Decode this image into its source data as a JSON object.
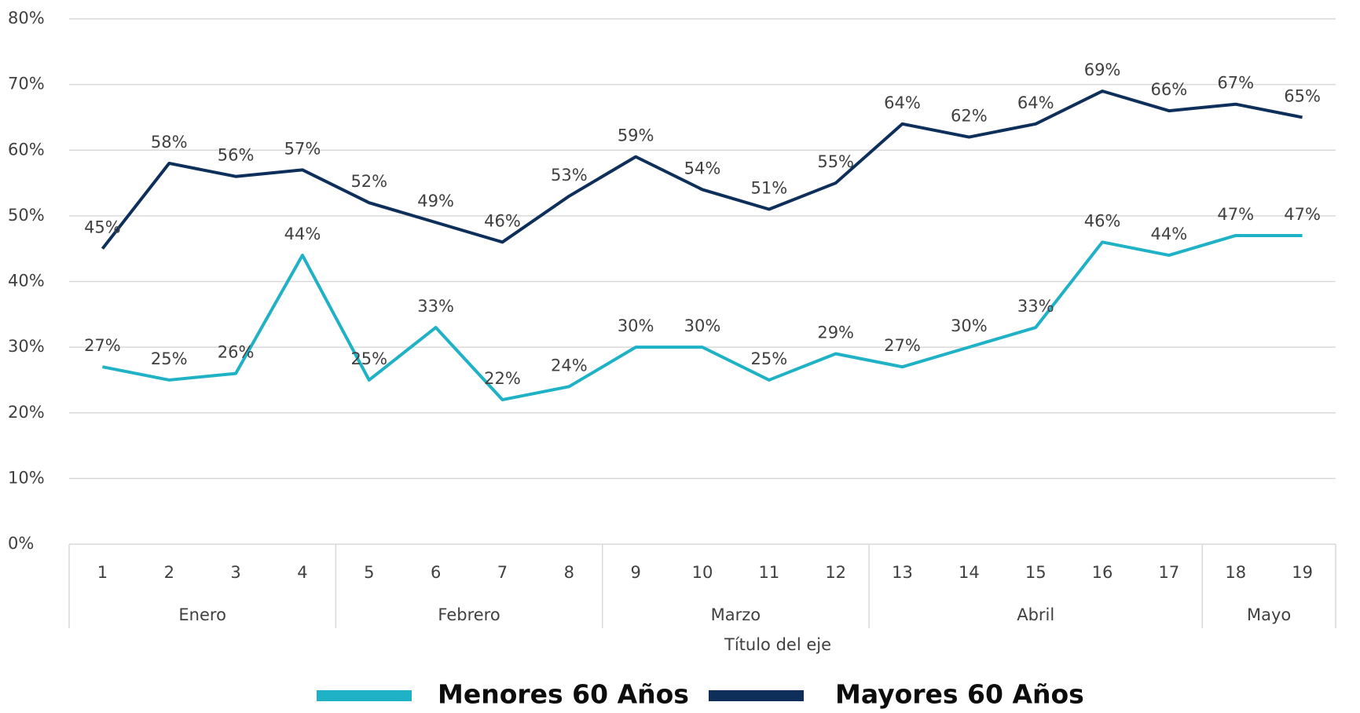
{
  "chart_data": {
    "type": "line",
    "x_axis_title": "Título del eje",
    "groups": [
      {
        "label": "Enero",
        "categories": [
          "1",
          "2",
          "3",
          "4"
        ]
      },
      {
        "label": "Febrero",
        "categories": [
          "5",
          "6",
          "7",
          "8"
        ]
      },
      {
        "label": "Marzo",
        "categories": [
          "9",
          "10",
          "11",
          "12"
        ]
      },
      {
        "label": "Abril",
        "categories": [
          "13",
          "14",
          "15",
          "16",
          "17"
        ]
      },
      {
        "label": "Mayo",
        "categories": [
          "18",
          "19"
        ]
      }
    ],
    "series": [
      {
        "name": "Menores 60 Años",
        "color": "#1fb1c5",
        "values": [
          27,
          25,
          26,
          44,
          25,
          33,
          22,
          24,
          30,
          30,
          25,
          29,
          27,
          30,
          33,
          46,
          44,
          47,
          47
        ],
        "value_labels": [
          "27%",
          "25%",
          "26%",
          "44%",
          "25%",
          "33%",
          "22%",
          "24%",
          "30%",
          "30%",
          "25%",
          "29%",
          "27%",
          "30%",
          "33%",
          "46%",
          "44%",
          "47%",
          "47%"
        ]
      },
      {
        "name": "Mayores 60 Años",
        "color": "#0d2f5a",
        "values": [
          45,
          58,
          56,
          57,
          52,
          49,
          46,
          53,
          59,
          54,
          51,
          55,
          64,
          62,
          64,
          69,
          66,
          67,
          65
        ],
        "value_labels": [
          "45%",
          "58%",
          "56%",
          "57%",
          "52%",
          "49%",
          "46%",
          "53%",
          "59%",
          "54%",
          "51%",
          "55%",
          "64%",
          "62%",
          "64%",
          "69%",
          "66%",
          "67%",
          "65%"
        ]
      }
    ],
    "ylim": [
      0,
      80
    ],
    "yticks": [
      {
        "value": 0,
        "label": "0%"
      },
      {
        "value": 10,
        "label": "10%"
      },
      {
        "value": 20,
        "label": "20%"
      },
      {
        "value": 30,
        "label": "30%"
      },
      {
        "value": 40,
        "label": "40%"
      },
      {
        "value": 50,
        "label": "50%"
      },
      {
        "value": 60,
        "label": "60%"
      },
      {
        "value": 70,
        "label": "70%"
      },
      {
        "value": 80,
        "label": "80%"
      }
    ],
    "grid": true
  }
}
